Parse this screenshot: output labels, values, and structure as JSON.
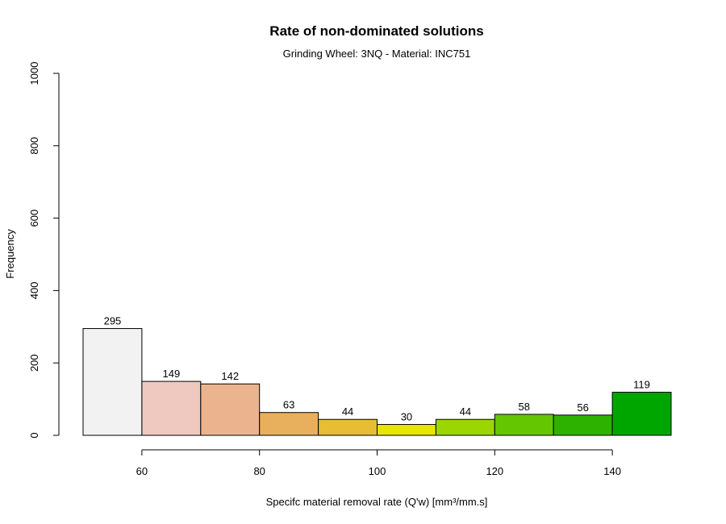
{
  "chart_data": {
    "type": "bar",
    "title": "Rate of non-dominated solutions",
    "subtitle": "Grinding Wheel: 3NQ - Material: INC751",
    "xlabel": "Specifc material removal rate (Q'w) [mm³/mm.s]",
    "ylabel": "Frequency",
    "bins": [
      {
        "from": 50,
        "to": 60,
        "value": 295,
        "color": "#F2F2F2"
      },
      {
        "from": 60,
        "to": 70,
        "value": 149,
        "color": "#EFC9C0"
      },
      {
        "from": 70,
        "to": 80,
        "value": 142,
        "color": "#ECB48E"
      },
      {
        "from": 80,
        "to": 90,
        "value": 63,
        "color": "#E8B05C"
      },
      {
        "from": 90,
        "to": 100,
        "value": 44,
        "color": "#E6BD34"
      },
      {
        "from": 100,
        "to": 110,
        "value": 30,
        "color": "#E6E600"
      },
      {
        "from": 110,
        "to": 120,
        "value": 44,
        "color": "#9BD600"
      },
      {
        "from": 120,
        "to": 130,
        "value": 58,
        "color": "#63C600"
      },
      {
        "from": 130,
        "to": 140,
        "value": 56,
        "color": "#2EB200"
      },
      {
        "from": 140,
        "to": 150,
        "value": 119,
        "color": "#00A600"
      }
    ],
    "xlim": [
      50,
      150
    ],
    "ylim": [
      0,
      1000
    ],
    "x_ticks": [
      "60",
      "80",
      "100",
      "120",
      "140"
    ],
    "y_ticks": [
      "0",
      "200",
      "400",
      "600",
      "800",
      "1000"
    ],
    "grid": false,
    "legend": "none"
  }
}
